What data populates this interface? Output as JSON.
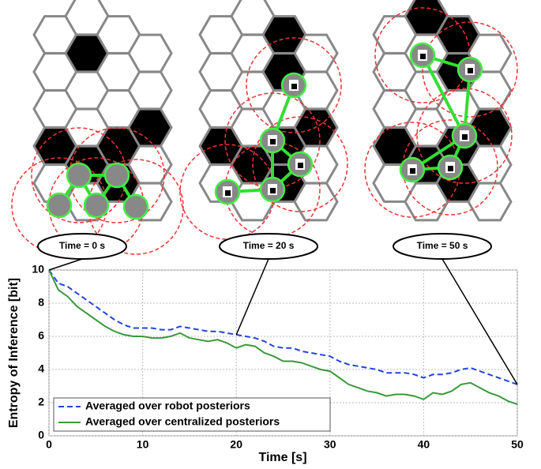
{
  "chart_data": {
    "type": "line",
    "xlabel": "Time [s]",
    "ylabel": "Entropy of Inference [bit]",
    "x": [
      0,
      1,
      2,
      3,
      4,
      5,
      6,
      7,
      8,
      9,
      10,
      11,
      12,
      13,
      14,
      15,
      16,
      17,
      18,
      19,
      20,
      21,
      22,
      23,
      24,
      25,
      26,
      27,
      28,
      29,
      30,
      31,
      32,
      33,
      34,
      35,
      36,
      37,
      38,
      39,
      40,
      41,
      42,
      43,
      44,
      45,
      46,
      47,
      48,
      49,
      50
    ],
    "series": [
      {
        "name": "Averaged over robot posteriors",
        "color": "#2244dd",
        "dash": true,
        "values": [
          10,
          9.2,
          9.0,
          8.6,
          8.2,
          7.8,
          7.4,
          7.0,
          6.7,
          6.5,
          6.5,
          6.5,
          6.4,
          6.4,
          6.6,
          6.5,
          6.4,
          6.3,
          6.3,
          6.2,
          6.1,
          6.0,
          5.9,
          5.7,
          5.4,
          5.3,
          5.3,
          5.1,
          5.0,
          4.9,
          4.8,
          4.5,
          4.3,
          4.2,
          4.1,
          4.0,
          3.8,
          3.8,
          3.8,
          3.7,
          3.5,
          3.7,
          3.7,
          3.8,
          4.0,
          4.1,
          3.9,
          3.7,
          3.5,
          3.3,
          3.1
        ]
      },
      {
        "name": "Averaged over centralized posteriors",
        "color": "#3a9a3a",
        "dash": false,
        "values": [
          10,
          8.8,
          8.4,
          7.8,
          7.4,
          7.0,
          6.6,
          6.3,
          6.1,
          6.0,
          6.0,
          5.9,
          5.9,
          6.0,
          6.2,
          5.9,
          5.8,
          5.7,
          5.8,
          5.6,
          5.3,
          5.5,
          5.4,
          5.0,
          4.8,
          4.5,
          4.5,
          4.4,
          4.2,
          4.0,
          3.9,
          3.5,
          3.1,
          2.9,
          2.7,
          2.6,
          2.4,
          2.5,
          2.5,
          2.4,
          2.2,
          2.6,
          2.5,
          2.7,
          3.1,
          3.2,
          2.9,
          2.6,
          2.4,
          2.1,
          1.9
        ]
      }
    ],
    "xlim": [
      0,
      50
    ],
    "xticks": [
      0,
      10,
      20,
      30,
      40,
      50
    ],
    "ylim": [
      0,
      10
    ],
    "yticks": [
      0,
      2,
      4,
      6,
      8,
      10
    ],
    "grid": true,
    "legend": "lower left",
    "annotations": [
      {
        "text": "Time = 0 s"
      },
      {
        "text": "Time = 20 s"
      },
      {
        "text": "Time = 50 s"
      }
    ]
  }
}
